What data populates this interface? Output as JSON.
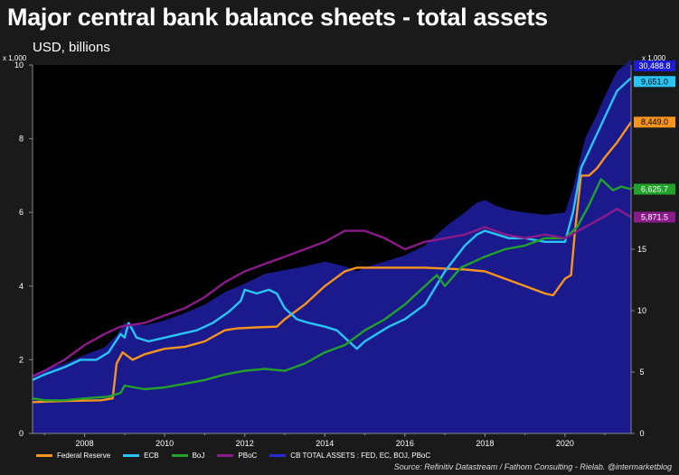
{
  "header": {
    "title": "Major central bank balance sheets - total assets",
    "subtitle": "USD, billions"
  },
  "source": "Source: Refinitiv Datastream / Fathom Consulting - Rielab. @intermarketblog",
  "chart_data": {
    "type": "line",
    "left_axis": {
      "multiplier_label": "x 1,000",
      "ylim": [
        0,
        10
      ],
      "ticks": [
        "0",
        "2",
        "4",
        "6",
        "8",
        "10"
      ]
    },
    "right_axis": {
      "multiplier_label": "x 1,000",
      "ylim": [
        0,
        30
      ],
      "ticks": [
        "0",
        "5",
        "10",
        "15",
        "20"
      ]
    },
    "x_axis": {
      "xlim": [
        2006.7,
        2021.65
      ],
      "ticks": [
        "2008",
        "2010",
        "2012",
        "2014",
        "2016",
        "2018",
        "2020"
      ]
    },
    "grid": false,
    "legend_position": "bottom",
    "series": [
      {
        "name": "Federal Reserve",
        "color": "#f7941d",
        "axis": "left",
        "end_label": "8,449.0",
        "points": [
          [
            2006.7,
            0.85
          ],
          [
            2007.5,
            0.88
          ],
          [
            2008.4,
            0.9
          ],
          [
            2008.7,
            0.95
          ],
          [
            2008.8,
            1.9
          ],
          [
            2008.95,
            2.2
          ],
          [
            2009.2,
            2.0
          ],
          [
            2009.5,
            2.15
          ],
          [
            2010.0,
            2.3
          ],
          [
            2010.5,
            2.35
          ],
          [
            2011.0,
            2.5
          ],
          [
            2011.5,
            2.8
          ],
          [
            2011.8,
            2.85
          ],
          [
            2012.3,
            2.88
          ],
          [
            2012.8,
            2.9
          ],
          [
            2013.0,
            3.1
          ],
          [
            2013.5,
            3.5
          ],
          [
            2014.0,
            4.0
          ],
          [
            2014.5,
            4.4
          ],
          [
            2014.8,
            4.5
          ],
          [
            2015.5,
            4.5
          ],
          [
            2016.5,
            4.5
          ],
          [
            2017.5,
            4.45
          ],
          [
            2018.0,
            4.4
          ],
          [
            2018.5,
            4.2
          ],
          [
            2019.0,
            4.0
          ],
          [
            2019.5,
            3.8
          ],
          [
            2019.7,
            3.75
          ],
          [
            2019.8,
            3.9
          ],
          [
            2020.0,
            4.2
          ],
          [
            2020.15,
            4.3
          ],
          [
            2020.25,
            5.5
          ],
          [
            2020.4,
            7.0
          ],
          [
            2020.6,
            7.0
          ],
          [
            2020.8,
            7.2
          ],
          [
            2021.0,
            7.5
          ],
          [
            2021.3,
            7.9
          ],
          [
            2021.65,
            8.45
          ]
        ]
      },
      {
        "name": "ECB",
        "color": "#29c5f6",
        "axis": "left",
        "end_label": "9,651.0",
        "points": [
          [
            2006.7,
            1.45
          ],
          [
            2007.0,
            1.6
          ],
          [
            2007.5,
            1.8
          ],
          [
            2007.9,
            2.0
          ],
          [
            2008.3,
            2.0
          ],
          [
            2008.6,
            2.2
          ],
          [
            2008.9,
            2.7
          ],
          [
            2009.0,
            2.6
          ],
          [
            2009.1,
            3.0
          ],
          [
            2009.3,
            2.6
          ],
          [
            2009.6,
            2.5
          ],
          [
            2010.0,
            2.6
          ],
          [
            2010.4,
            2.7
          ],
          [
            2010.8,
            2.8
          ],
          [
            2011.2,
            3.0
          ],
          [
            2011.6,
            3.3
          ],
          [
            2011.9,
            3.6
          ],
          [
            2012.0,
            3.9
          ],
          [
            2012.3,
            3.8
          ],
          [
            2012.6,
            3.9
          ],
          [
            2012.8,
            3.8
          ],
          [
            2013.0,
            3.4
          ],
          [
            2013.3,
            3.1
          ],
          [
            2013.6,
            3.0
          ],
          [
            2014.0,
            2.9
          ],
          [
            2014.3,
            2.8
          ],
          [
            2014.6,
            2.5
          ],
          [
            2014.8,
            2.3
          ],
          [
            2015.0,
            2.5
          ],
          [
            2015.3,
            2.7
          ],
          [
            2015.6,
            2.9
          ],
          [
            2016.0,
            3.1
          ],
          [
            2016.5,
            3.5
          ],
          [
            2017.0,
            4.4
          ],
          [
            2017.5,
            5.1
          ],
          [
            2017.8,
            5.4
          ],
          [
            2018.0,
            5.5
          ],
          [
            2018.3,
            5.4
          ],
          [
            2018.6,
            5.3
          ],
          [
            2019.0,
            5.3
          ],
          [
            2019.5,
            5.2
          ],
          [
            2020.0,
            5.2
          ],
          [
            2020.2,
            6.0
          ],
          [
            2020.4,
            7.2
          ],
          [
            2020.7,
            7.9
          ],
          [
            2021.0,
            8.6
          ],
          [
            2021.3,
            9.3
          ],
          [
            2021.65,
            9.65
          ]
        ]
      },
      {
        "name": "BoJ",
        "color": "#22a22a",
        "axis": "left",
        "end_label": "6,625.7",
        "points": [
          [
            2006.7,
            0.95
          ],
          [
            2007.0,
            0.9
          ],
          [
            2007.5,
            0.9
          ],
          [
            2008.0,
            0.95
          ],
          [
            2008.6,
            1.0
          ],
          [
            2008.9,
            1.1
          ],
          [
            2009.0,
            1.3
          ],
          [
            2009.5,
            1.2
          ],
          [
            2010.0,
            1.25
          ],
          [
            2010.5,
            1.35
          ],
          [
            2011.0,
            1.45
          ],
          [
            2011.5,
            1.6
          ],
          [
            2012.0,
            1.7
          ],
          [
            2012.5,
            1.75
          ],
          [
            2013.0,
            1.7
          ],
          [
            2013.5,
            1.9
          ],
          [
            2014.0,
            2.2
          ],
          [
            2014.5,
            2.4
          ],
          [
            2015.0,
            2.8
          ],
          [
            2015.5,
            3.1
          ],
          [
            2016.0,
            3.5
          ],
          [
            2016.4,
            3.9
          ],
          [
            2016.8,
            4.3
          ],
          [
            2017.0,
            4.0
          ],
          [
            2017.4,
            4.5
          ],
          [
            2017.8,
            4.7
          ],
          [
            2018.0,
            4.8
          ],
          [
            2018.5,
            5.0
          ],
          [
            2019.0,
            5.1
          ],
          [
            2019.5,
            5.3
          ],
          [
            2020.0,
            5.3
          ],
          [
            2020.3,
            5.6
          ],
          [
            2020.6,
            6.2
          ],
          [
            2020.9,
            6.9
          ],
          [
            2021.2,
            6.6
          ],
          [
            2021.4,
            6.7
          ],
          [
            2021.65,
            6.63
          ]
        ]
      },
      {
        "name": "PBoC",
        "color": "#8b1a8b",
        "axis": "left",
        "end_label": "5,871.5",
        "points": [
          [
            2006.7,
            1.55
          ],
          [
            2007.0,
            1.7
          ],
          [
            2007.5,
            2.0
          ],
          [
            2008.0,
            2.4
          ],
          [
            2008.5,
            2.7
          ],
          [
            2008.9,
            2.9
          ],
          [
            2009.5,
            3.0
          ],
          [
            2010.0,
            3.2
          ],
          [
            2010.5,
            3.4
          ],
          [
            2011.0,
            3.7
          ],
          [
            2011.5,
            4.1
          ],
          [
            2012.0,
            4.4
          ],
          [
            2012.5,
            4.6
          ],
          [
            2013.0,
            4.8
          ],
          [
            2013.5,
            5.0
          ],
          [
            2014.0,
            5.2
          ],
          [
            2014.5,
            5.5
          ],
          [
            2015.0,
            5.5
          ],
          [
            2015.5,
            5.3
          ],
          [
            2016.0,
            5.0
          ],
          [
            2016.5,
            5.2
          ],
          [
            2017.0,
            5.3
          ],
          [
            2017.5,
            5.4
          ],
          [
            2018.0,
            5.6
          ],
          [
            2018.5,
            5.4
          ],
          [
            2019.0,
            5.3
          ],
          [
            2019.5,
            5.4
          ],
          [
            2020.0,
            5.3
          ],
          [
            2020.5,
            5.6
          ],
          [
            2021.0,
            5.9
          ],
          [
            2021.3,
            6.1
          ],
          [
            2021.65,
            5.87
          ]
        ]
      },
      {
        "name": "CB TOTAL ASSETS : FED, EC, BOJ, PBoC",
        "color": "#1a1a8c",
        "axis": "right",
        "type": "area",
        "end_label": "30,488.8",
        "points": [
          [
            2006.7,
            4.8
          ],
          [
            2007.0,
            5.2
          ],
          [
            2007.5,
            5.7
          ],
          [
            2008.0,
            6.4
          ],
          [
            2008.5,
            7.0
          ],
          [
            2008.8,
            8.0
          ],
          [
            2009.0,
            9.0
          ],
          [
            2009.5,
            8.8
          ],
          [
            2010.0,
            9.2
          ],
          [
            2010.5,
            9.8
          ],
          [
            2011.0,
            10.5
          ],
          [
            2011.5,
            11.5
          ],
          [
            2012.0,
            12.2
          ],
          [
            2012.5,
            13.0
          ],
          [
            2013.0,
            13.3
          ],
          [
            2013.5,
            13.6
          ],
          [
            2014.0,
            14.0
          ],
          [
            2014.5,
            13.6
          ],
          [
            2014.8,
            13.2
          ],
          [
            2015.0,
            13.5
          ],
          [
            2015.5,
            14.0
          ],
          [
            2016.0,
            14.5
          ],
          [
            2016.5,
            15.3
          ],
          [
            2017.0,
            16.8
          ],
          [
            2017.5,
            18.0
          ],
          [
            2017.8,
            18.8
          ],
          [
            2018.0,
            19.0
          ],
          [
            2018.3,
            18.5
          ],
          [
            2018.6,
            18.2
          ],
          [
            2019.0,
            18.0
          ],
          [
            2019.5,
            17.8
          ],
          [
            2020.0,
            18.0
          ],
          [
            2020.2,
            20.0
          ],
          [
            2020.5,
            24.0
          ],
          [
            2020.8,
            26.0
          ],
          [
            2021.0,
            27.5
          ],
          [
            2021.3,
            29.5
          ],
          [
            2021.5,
            30.0
          ],
          [
            2021.65,
            30.5
          ]
        ]
      }
    ]
  }
}
